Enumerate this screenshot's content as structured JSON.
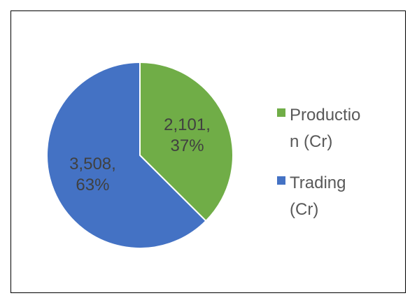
{
  "chart_data": {
    "type": "pie",
    "categories": [
      "Production (Cr)",
      "Trading (Cr)"
    ],
    "values": [
      2101,
      3508
    ],
    "value_labels": [
      "2,101, 37%",
      "3,508, 63%"
    ],
    "colors": [
      "#70ad47",
      "#4472c4"
    ],
    "legend": "right"
  }
}
